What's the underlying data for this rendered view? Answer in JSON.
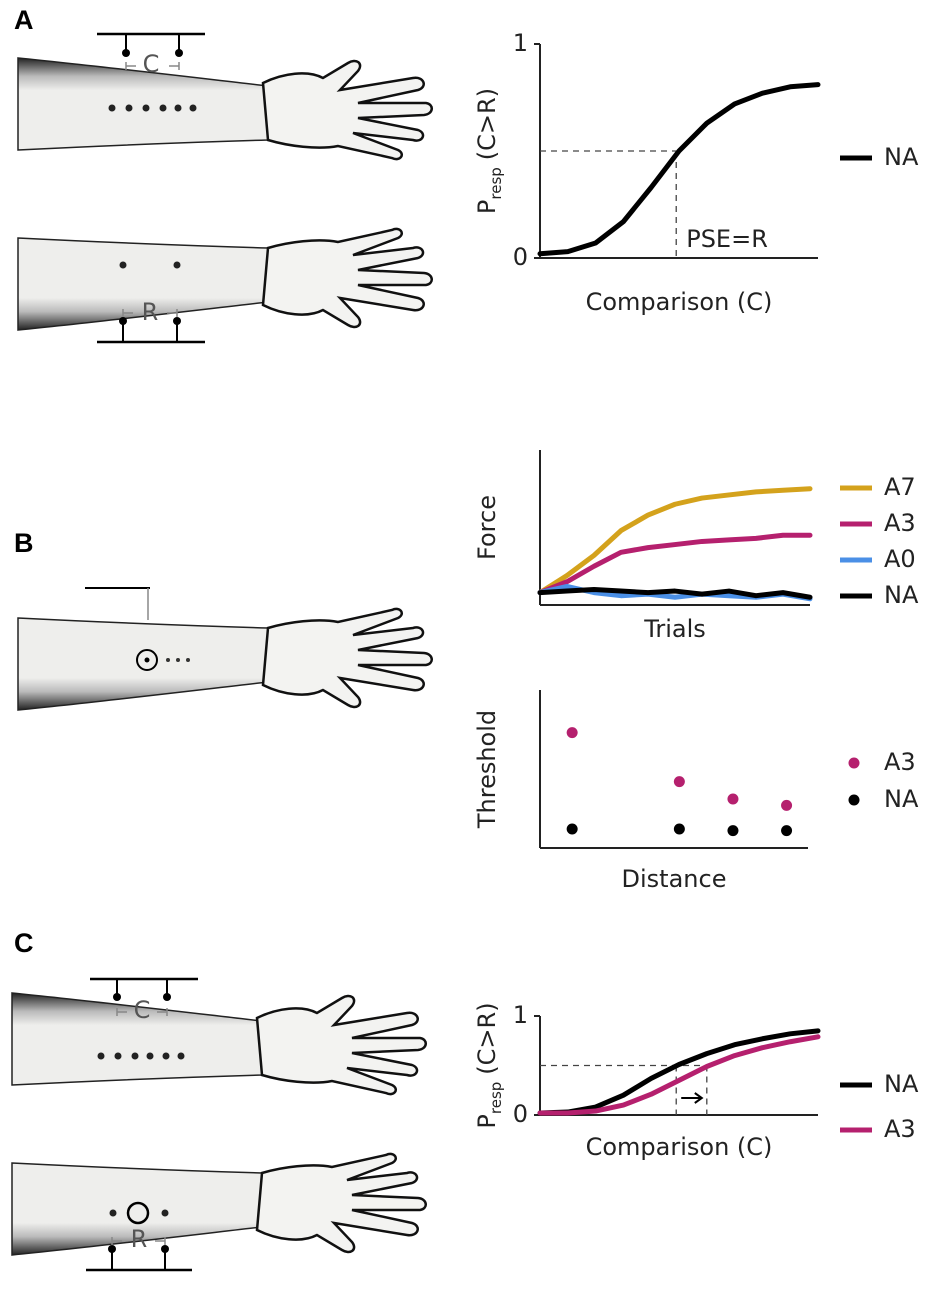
{
  "panel_labels": [
    "A",
    "B",
    "C"
  ],
  "arm_labels": [
    "C",
    "R",
    "C",
    "R"
  ],
  "chart_data": [
    {
      "type": "line",
      "y_label": "P",
      "y_label_subscript": "resp",
      "y_label_suffix": "(C>R)",
      "x_label": "Comparison (C)",
      "annotation": "PSE=R",
      "x": [
        0,
        0.1,
        0.2,
        0.3,
        0.4,
        0.5,
        0.6,
        0.7,
        0.8,
        0.9,
        1
      ],
      "xlim": [
        0,
        1
      ],
      "ylim": [
        0,
        1
      ],
      "yticks": [
        0,
        1
      ],
      "guides": {
        "y": 0.5,
        "x": [
          0.49
        ]
      },
      "series": [
        {
          "name": "NA",
          "color": "#000000",
          "values": [
            0.02,
            0.03,
            0.07,
            0.17,
            0.33,
            0.5,
            0.63,
            0.72,
            0.77,
            0.8,
            0.81
          ]
        }
      ]
    },
    {
      "type": "line",
      "y_label": "Force",
      "x_label": "Trials",
      "x": [
        0,
        0.1,
        0.2,
        0.3,
        0.4,
        0.5,
        0.6,
        0.7,
        0.8,
        0.9,
        1
      ],
      "xlim": [
        0,
        1
      ],
      "ylim": [
        0,
        1
      ],
      "series": [
        {
          "name": "A7",
          "color": "#d4a21c",
          "values": [
            0.08,
            0.19,
            0.32,
            0.48,
            0.58,
            0.65,
            0.69,
            0.71,
            0.73,
            0.74,
            0.75
          ]
        },
        {
          "name": "A3",
          "color": "#b5206e",
          "values": [
            0.08,
            0.15,
            0.25,
            0.34,
            0.37,
            0.39,
            0.41,
            0.42,
            0.43,
            0.45,
            0.45
          ]
        },
        {
          "name": "A0",
          "color": "#4a8fe6",
          "values": [
            0.08,
            0.12,
            0.08,
            0.06,
            0.07,
            0.05,
            0.07,
            0.06,
            0.05,
            0.07,
            0.04
          ]
        },
        {
          "name": "NA",
          "color": "#000000",
          "values": [
            0.08,
            0.09,
            0.1,
            0.09,
            0.08,
            0.09,
            0.07,
            0.09,
            0.06,
            0.08,
            0.05
          ]
        }
      ]
    },
    {
      "type": "scatter",
      "y_label": "Threshold",
      "x_label": "Distance",
      "x": [
        0.12,
        0.52,
        0.72,
        0.92
      ],
      "xlim": [
        0,
        1
      ],
      "ylim": [
        0,
        1
      ],
      "series": [
        {
          "name": "A3",
          "color": "#b5206e",
          "values": [
            0.73,
            0.42,
            0.31,
            0.27
          ]
        },
        {
          "name": "NA",
          "color": "#000000",
          "values": [
            0.12,
            0.12,
            0.11,
            0.11
          ]
        }
      ]
    },
    {
      "type": "line",
      "y_label": "P",
      "y_label_subscript": "resp",
      "y_label_suffix": "(C>R)",
      "x_label": "Comparison (C)",
      "x": [
        0,
        0.1,
        0.2,
        0.3,
        0.4,
        0.5,
        0.6,
        0.7,
        0.8,
        0.9,
        1
      ],
      "xlim": [
        0,
        1
      ],
      "ylim": [
        0,
        1
      ],
      "yticks": [
        0,
        1
      ],
      "guides": {
        "y": 0.5,
        "x": [
          0.49,
          0.6
        ]
      },
      "series": [
        {
          "name": "NA",
          "color": "#000000",
          "values": [
            0.02,
            0.03,
            0.08,
            0.2,
            0.37,
            0.51,
            0.62,
            0.71,
            0.77,
            0.82,
            0.85
          ]
        },
        {
          "name": "A3",
          "color": "#b5206e",
          "values": [
            0.02,
            0.02,
            0.04,
            0.1,
            0.21,
            0.35,
            0.49,
            0.6,
            0.68,
            0.74,
            0.79
          ]
        }
      ]
    }
  ]
}
